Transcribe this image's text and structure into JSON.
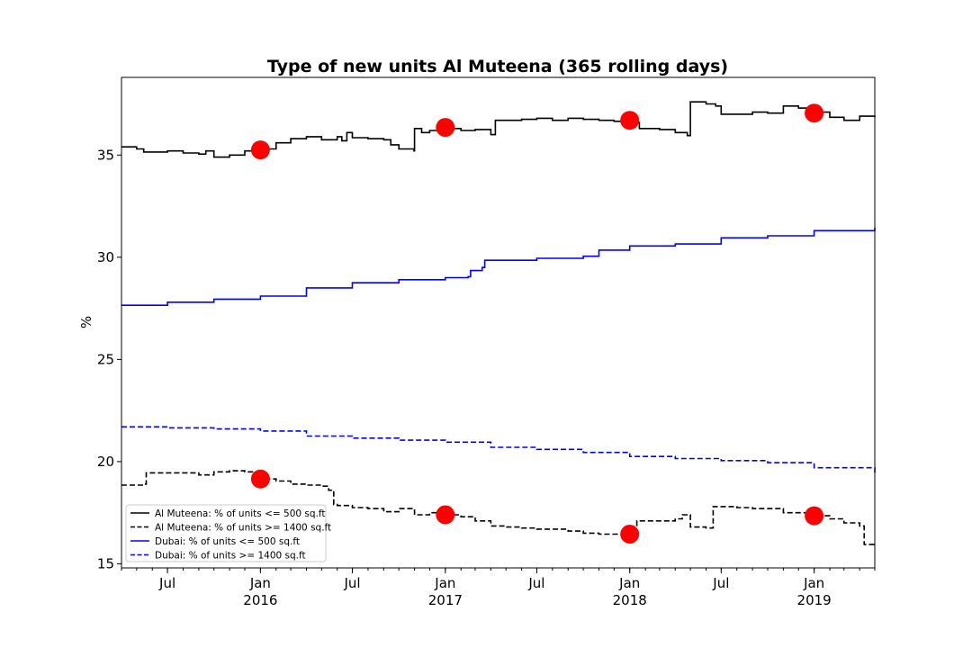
{
  "chart_data": {
    "type": "line",
    "title": "Type of new units Al Muteena (365 rolling days)",
    "xlabel": "",
    "ylabel": "%",
    "x_range": [
      "2015-04-01",
      "2019-05-01"
    ],
    "ylim": [
      14.8,
      38.8
    ],
    "y_ticks": [
      15,
      20,
      25,
      30,
      35
    ],
    "x_ticks": [
      {
        "date": "2015-07-01",
        "label": "Jul",
        "year": ""
      },
      {
        "date": "2016-01-01",
        "label": "Jan",
        "year": "2016"
      },
      {
        "date": "2016-07-01",
        "label": "Jul",
        "year": ""
      },
      {
        "date": "2017-01-01",
        "label": "Jan",
        "year": "2017"
      },
      {
        "date": "2017-07-01",
        "label": "Jul",
        "year": ""
      },
      {
        "date": "2018-01-01",
        "label": "Jan",
        "year": "2018"
      },
      {
        "date": "2018-07-01",
        "label": "Jul",
        "year": ""
      },
      {
        "date": "2019-01-01",
        "label": "Jan",
        "year": "2019"
      }
    ],
    "grid": false,
    "legend_position": "lower-left",
    "series": [
      {
        "name": "Al Muteena: % of units <= 500 sq.ft",
        "color": "#000000",
        "style": "solid",
        "points": [
          [
            "2015-04-01",
            35.4
          ],
          [
            "2015-05-01",
            35.3
          ],
          [
            "2015-05-15",
            35.15
          ],
          [
            "2015-07-01",
            35.2
          ],
          [
            "2015-08-01",
            35.1
          ],
          [
            "2015-09-01",
            35.05
          ],
          [
            "2015-09-15",
            35.2
          ],
          [
            "2015-10-01",
            34.9
          ],
          [
            "2015-11-01",
            35.0
          ],
          [
            "2015-12-01",
            35.2
          ],
          [
            "2016-01-01",
            35.3
          ],
          [
            "2016-02-01",
            35.6
          ],
          [
            "2016-03-01",
            35.8
          ],
          [
            "2016-04-01",
            35.9
          ],
          [
            "2016-05-01",
            35.75
          ],
          [
            "2016-06-01",
            35.9
          ],
          [
            "2016-06-10",
            35.7
          ],
          [
            "2016-06-20",
            36.1
          ],
          [
            "2016-07-01",
            35.85
          ],
          [
            "2016-08-01",
            35.8
          ],
          [
            "2016-09-01",
            35.75
          ],
          [
            "2016-09-15",
            35.5
          ],
          [
            "2016-10-01",
            35.3
          ],
          [
            "2016-10-31",
            35.2
          ],
          [
            "2016-11-01",
            36.3
          ],
          [
            "2016-11-15",
            36.1
          ],
          [
            "2016-12-01",
            36.2
          ],
          [
            "2017-01-01",
            36.3
          ],
          [
            "2017-02-01",
            36.2
          ],
          [
            "2017-03-01",
            36.25
          ],
          [
            "2017-04-01",
            36.0
          ],
          [
            "2017-04-10",
            36.7
          ],
          [
            "2017-06-01",
            36.75
          ],
          [
            "2017-07-01",
            36.8
          ],
          [
            "2017-08-01",
            36.7
          ],
          [
            "2017-09-01",
            36.8
          ],
          [
            "2017-10-01",
            36.75
          ],
          [
            "2017-11-01",
            36.7
          ],
          [
            "2017-12-01",
            36.65
          ],
          [
            "2018-01-01",
            36.6
          ],
          [
            "2018-01-20",
            36.3
          ],
          [
            "2018-03-01",
            36.25
          ],
          [
            "2018-04-01",
            36.1
          ],
          [
            "2018-04-25",
            35.95
          ],
          [
            "2018-05-01",
            37.6
          ],
          [
            "2018-06-01",
            37.5
          ],
          [
            "2018-06-20",
            37.4
          ],
          [
            "2018-07-01",
            37.0
          ],
          [
            "2018-08-01",
            37.0
          ],
          [
            "2018-09-01",
            37.1
          ],
          [
            "2018-10-01",
            37.05
          ],
          [
            "2018-11-01",
            37.4
          ],
          [
            "2018-12-01",
            37.3
          ],
          [
            "2019-01-01",
            37.1
          ],
          [
            "2019-02-01",
            36.85
          ],
          [
            "2019-03-01",
            36.7
          ],
          [
            "2019-04-01",
            36.9
          ],
          [
            "2019-05-01",
            36.85
          ]
        ]
      },
      {
        "name": "Al Muteena: % of units >= 1400 sq.ft",
        "color": "#000000",
        "style": "dashed",
        "points": [
          [
            "2015-04-01",
            18.85
          ],
          [
            "2015-05-15",
            18.9
          ],
          [
            "2015-05-20",
            19.45
          ],
          [
            "2015-07-01",
            19.45
          ],
          [
            "2015-09-01",
            19.35
          ],
          [
            "2015-10-01",
            19.5
          ],
          [
            "2015-11-01",
            19.55
          ],
          [
            "2015-12-01",
            19.5
          ],
          [
            "2016-01-01",
            19.15
          ],
          [
            "2016-02-01",
            19.05
          ],
          [
            "2016-03-01",
            18.9
          ],
          [
            "2016-04-01",
            18.85
          ],
          [
            "2016-05-01",
            18.8
          ],
          [
            "2016-05-15",
            18.6
          ],
          [
            "2016-05-25",
            17.9
          ],
          [
            "2016-06-01",
            17.85
          ],
          [
            "2016-07-01",
            17.75
          ],
          [
            "2016-08-01",
            17.7
          ],
          [
            "2016-09-01",
            17.55
          ],
          [
            "2016-10-01",
            17.7
          ],
          [
            "2016-11-01",
            17.4
          ],
          [
            "2016-12-01",
            17.5
          ],
          [
            "2017-01-01",
            17.4
          ],
          [
            "2017-02-01",
            17.3
          ],
          [
            "2017-03-01",
            17.1
          ],
          [
            "2017-04-01",
            16.85
          ],
          [
            "2017-05-01",
            16.8
          ],
          [
            "2017-06-01",
            16.75
          ],
          [
            "2017-07-01",
            16.7
          ],
          [
            "2017-08-01",
            16.7
          ],
          [
            "2017-09-01",
            16.6
          ],
          [
            "2017-10-01",
            16.5
          ],
          [
            "2017-11-01",
            16.45
          ],
          [
            "2017-12-01",
            16.45
          ],
          [
            "2018-01-01",
            16.45
          ],
          [
            "2018-01-15",
            17.1
          ],
          [
            "2018-03-01",
            17.1
          ],
          [
            "2018-04-01",
            17.2
          ],
          [
            "2018-04-15",
            17.4
          ],
          [
            "2018-05-01",
            16.8
          ],
          [
            "2018-06-01",
            16.75
          ],
          [
            "2018-06-15",
            17.8
          ],
          [
            "2018-08-01",
            17.75
          ],
          [
            "2018-09-01",
            17.7
          ],
          [
            "2018-10-01",
            17.7
          ],
          [
            "2018-11-01",
            17.5
          ],
          [
            "2019-01-01",
            17.35
          ],
          [
            "2019-02-01",
            17.2
          ],
          [
            "2019-03-01",
            17.0
          ],
          [
            "2019-04-01",
            16.85
          ],
          [
            "2019-04-10",
            15.95
          ],
          [
            "2019-05-01",
            15.95
          ]
        ]
      },
      {
        "name": "Dubai: % of units <= 500 sq.ft",
        "color": "#0000ff",
        "style": "solid",
        "points": [
          [
            "2015-04-01",
            27.65
          ],
          [
            "2015-07-01",
            27.8
          ],
          [
            "2015-10-01",
            27.95
          ],
          [
            "2016-01-01",
            28.1
          ],
          [
            "2016-04-01",
            28.5
          ],
          [
            "2016-07-01",
            28.75
          ],
          [
            "2016-10-01",
            28.9
          ],
          [
            "2017-01-01",
            29.0
          ],
          [
            "2017-02-15",
            29.05
          ],
          [
            "2017-02-20",
            29.35
          ],
          [
            "2017-03-15",
            29.5
          ],
          [
            "2017-03-20",
            29.85
          ],
          [
            "2017-07-01",
            29.95
          ],
          [
            "2017-10-01",
            30.05
          ],
          [
            "2017-11-01",
            30.35
          ],
          [
            "2018-01-01",
            30.55
          ],
          [
            "2018-04-01",
            30.65
          ],
          [
            "2018-07-01",
            30.95
          ],
          [
            "2018-10-01",
            31.05
          ],
          [
            "2019-01-01",
            31.3
          ],
          [
            "2019-05-01",
            31.45
          ]
        ]
      },
      {
        "name": "Dubai: % of units >= 1400 sq.ft",
        "color": "#0000ff",
        "style": "dashed",
        "points": [
          [
            "2015-04-01",
            21.7
          ],
          [
            "2015-07-01",
            21.65
          ],
          [
            "2015-10-01",
            21.6
          ],
          [
            "2016-01-01",
            21.5
          ],
          [
            "2016-04-01",
            21.25
          ],
          [
            "2016-07-01",
            21.15
          ],
          [
            "2016-10-01",
            21.05
          ],
          [
            "2017-01-01",
            20.95
          ],
          [
            "2017-04-01",
            20.7
          ],
          [
            "2017-07-01",
            20.6
          ],
          [
            "2017-10-01",
            20.45
          ],
          [
            "2018-01-01",
            20.25
          ],
          [
            "2018-04-01",
            20.15
          ],
          [
            "2018-07-01",
            20.05
          ],
          [
            "2018-10-01",
            19.95
          ],
          [
            "2019-01-01",
            19.7
          ],
          [
            "2019-05-01",
            19.45
          ]
        ]
      }
    ],
    "markers": {
      "color": "#ff0000",
      "points": [
        [
          "2016-01-01",
          35.25
        ],
        [
          "2017-01-01",
          36.35
        ],
        [
          "2018-01-01",
          36.7
        ],
        [
          "2019-01-01",
          37.05
        ],
        [
          "2016-01-01",
          19.15
        ],
        [
          "2017-01-01",
          17.4
        ],
        [
          "2018-01-01",
          16.45
        ],
        [
          "2019-01-01",
          17.35
        ]
      ]
    }
  }
}
